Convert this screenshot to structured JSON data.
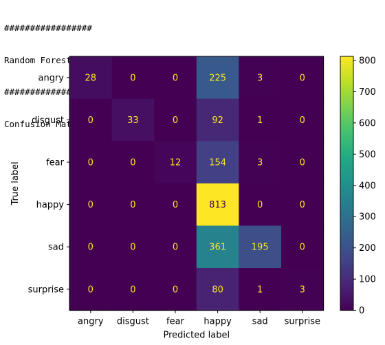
{
  "console": {
    "lines": [
      "#################",
      "Random Forest With GridSearchCV",
      "#################",
      "Confusion Matrix"
    ]
  },
  "chart_data": {
    "type": "heatmap",
    "title": "",
    "xlabel": "Predicted label",
    "ylabel": "True label",
    "x_categories": [
      "angry",
      "disgust",
      "fear",
      "happy",
      "sad",
      "surprise"
    ],
    "y_categories": [
      "angry",
      "disgust",
      "fear",
      "happy",
      "sad",
      "surprise"
    ],
    "values": [
      [
        28,
        0,
        0,
        225,
        3,
        0
      ],
      [
        0,
        33,
        0,
        92,
        1,
        0
      ],
      [
        0,
        0,
        12,
        154,
        3,
        0
      ],
      [
        0,
        0,
        0,
        813,
        0,
        0
      ],
      [
        0,
        0,
        0,
        361,
        195,
        0
      ],
      [
        0,
        0,
        0,
        80,
        1,
        3
      ]
    ],
    "colormap": "viridis",
    "color_range": [
      0,
      813
    ],
    "colorbar_ticks": [
      0,
      100,
      200,
      300,
      400,
      500,
      600,
      700,
      800
    ],
    "grid": false
  }
}
